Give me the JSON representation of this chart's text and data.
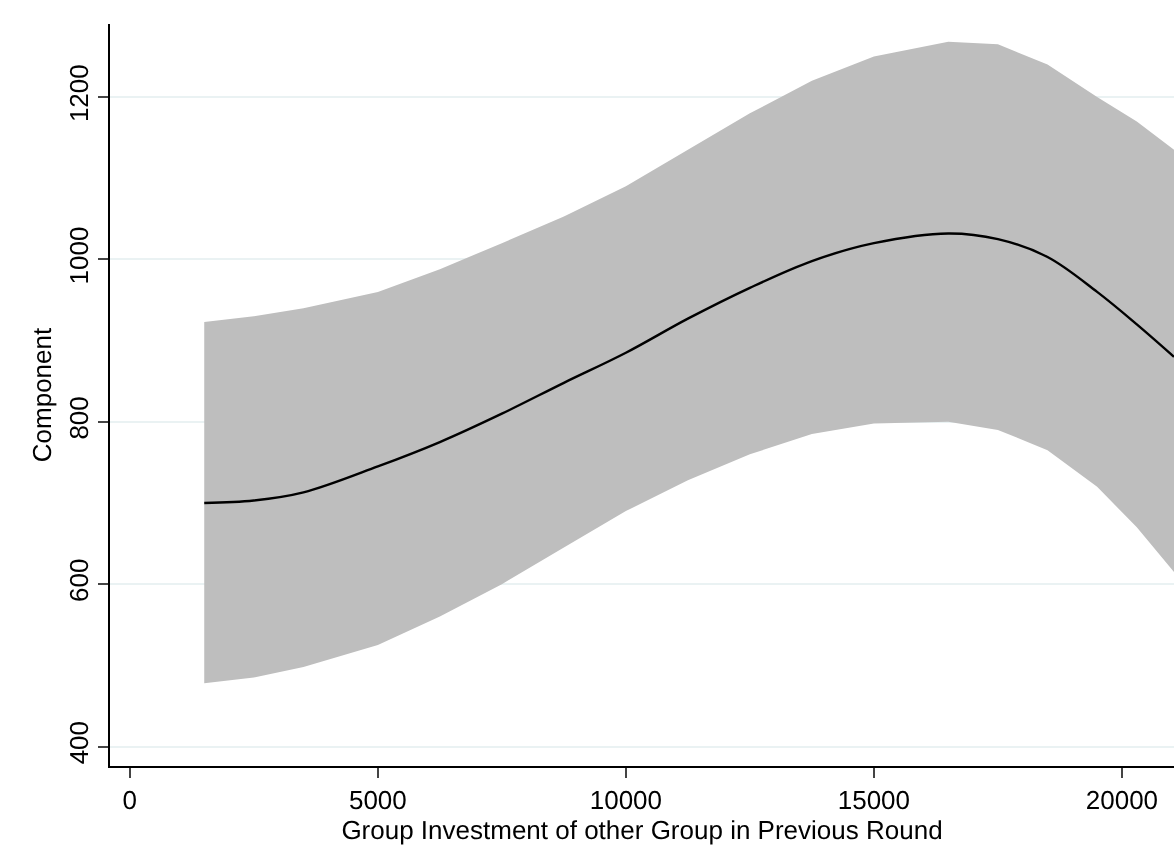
{
  "chart_data": {
    "type": "line",
    "xlabel": "Group Investment of other Group in Previous Round",
    "ylabel": "Component",
    "x": [
      1500,
      2500,
      3500,
      5000,
      6250,
      7500,
      8750,
      10000,
      11250,
      12500,
      13750,
      15000,
      16500,
      17500,
      18500,
      19500,
      20300,
      21050
    ],
    "series": [
      {
        "color": "#000000",
        "values": [
          700,
          703,
          713,
          745,
          775,
          810,
          848,
          885,
          927,
          965,
          998,
          1020,
          1032,
          1025,
          1003,
          960,
          920,
          880
        ],
        "lower": [
          478,
          485,
          498,
          525,
          560,
          600,
          645,
          690,
          728,
          760,
          785,
          798,
          800,
          790,
          765,
          720,
          670,
          615
        ],
        "upper": [
          923,
          930,
          940,
          960,
          988,
          1020,
          1053,
          1090,
          1135,
          1180,
          1220,
          1250,
          1268,
          1265,
          1240,
          1200,
          1170,
          1135
        ]
      }
    ],
    "xlim": [
      -400,
      21050
    ],
    "ylim": [
      376,
      1290
    ],
    "xticks": [
      0,
      5000,
      10000,
      15000,
      20000
    ],
    "yticks": [
      400,
      600,
      800,
      1000,
      1200
    ],
    "grid": "y",
    "marker": "none",
    "line_style": "solid"
  }
}
